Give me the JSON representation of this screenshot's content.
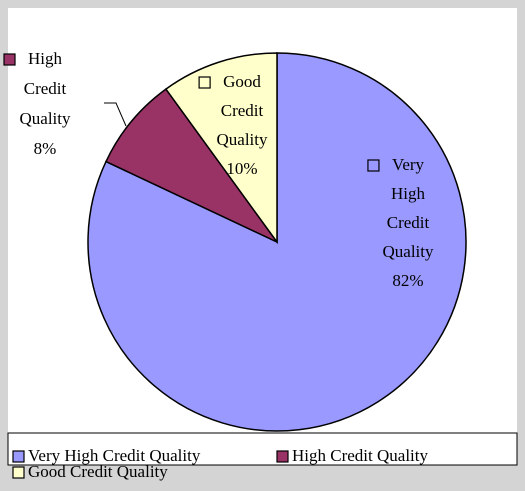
{
  "chart_data": {
    "type": "pie",
    "categories": [
      "Very High Credit Quality",
      "High Credit Quality",
      "Good Credit Quality"
    ],
    "values": [
      82,
      8,
      10
    ],
    "value_labels": [
      "82%",
      "8%",
      "10%"
    ],
    "colors": [
      "#9999ff",
      "#993366",
      "#ffffcc"
    ],
    "legend": "bottom"
  }
}
